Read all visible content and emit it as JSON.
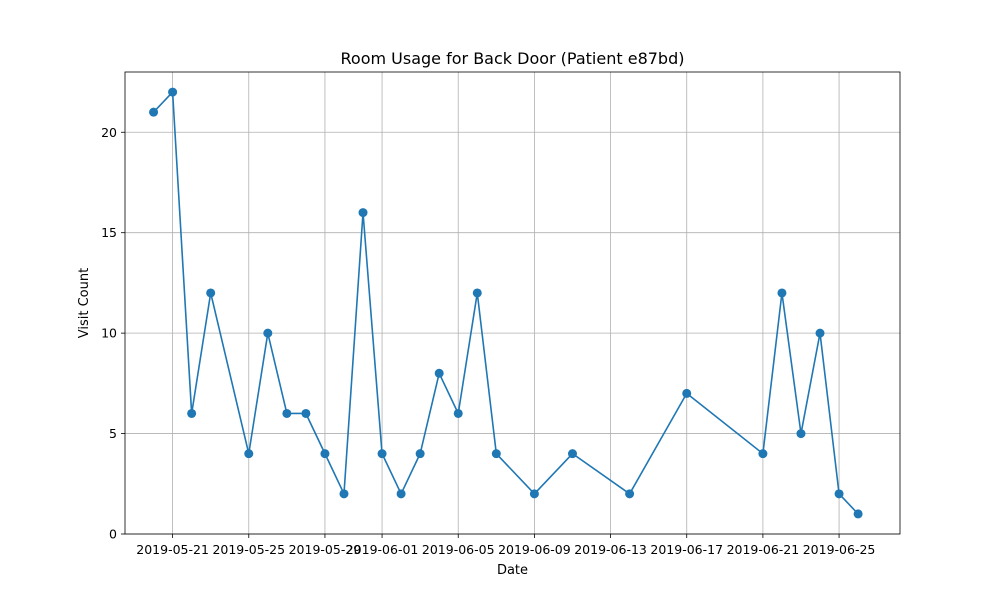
{
  "chart_data": {
    "type": "line",
    "title": "Room Usage for Back Door (Patient e87bd)",
    "xlabel": "Date",
    "ylabel": "Visit Count",
    "xlim": [
      "2019-05-18",
      "2019-06-28"
    ],
    "ylim": [
      0,
      23
    ],
    "grid": true,
    "marker": "circle",
    "line_color": "#1f77b4",
    "x_ticks": [
      "2019-05-21",
      "2019-05-25",
      "2019-05-29",
      "2019-06-01",
      "2019-06-05",
      "2019-06-09",
      "2019-06-13",
      "2019-06-17",
      "2019-06-21",
      "2019-06-25"
    ],
    "x_tick_labels": [
      "2019-05-21",
      "2019-05-25",
      "2019-05-29",
      "2019-06-01",
      "2019-06-05",
      "2019-06-09",
      "2019-06-13",
      "2019-06-17",
      "2019-06-21",
      "2019-06-25"
    ],
    "y_ticks": [
      0,
      5,
      10,
      15,
      20
    ],
    "y_tick_labels": [
      "0",
      "5",
      "10",
      "15",
      "20"
    ],
    "series": [
      {
        "x": [
          "2019-05-20",
          "2019-05-21",
          "2019-05-22",
          "2019-05-23",
          "2019-05-25",
          "2019-05-26",
          "2019-05-27",
          "2019-05-28",
          "2019-05-29",
          "2019-05-30",
          "2019-05-31",
          "2019-06-01",
          "2019-06-02",
          "2019-06-03",
          "2019-06-04",
          "2019-06-05",
          "2019-06-06",
          "2019-06-07",
          "2019-06-09",
          "2019-06-11",
          "2019-06-14",
          "2019-06-17",
          "2019-06-21",
          "2019-06-22",
          "2019-06-23",
          "2019-06-24",
          "2019-06-25",
          "2019-06-26"
        ],
        "values": [
          21,
          22,
          6,
          12,
          4,
          10,
          6,
          6,
          4,
          2,
          16,
          4,
          2,
          4,
          8,
          6,
          12,
          4,
          2,
          4,
          2,
          7,
          4,
          12,
          5,
          10,
          2,
          1
        ]
      }
    ]
  }
}
